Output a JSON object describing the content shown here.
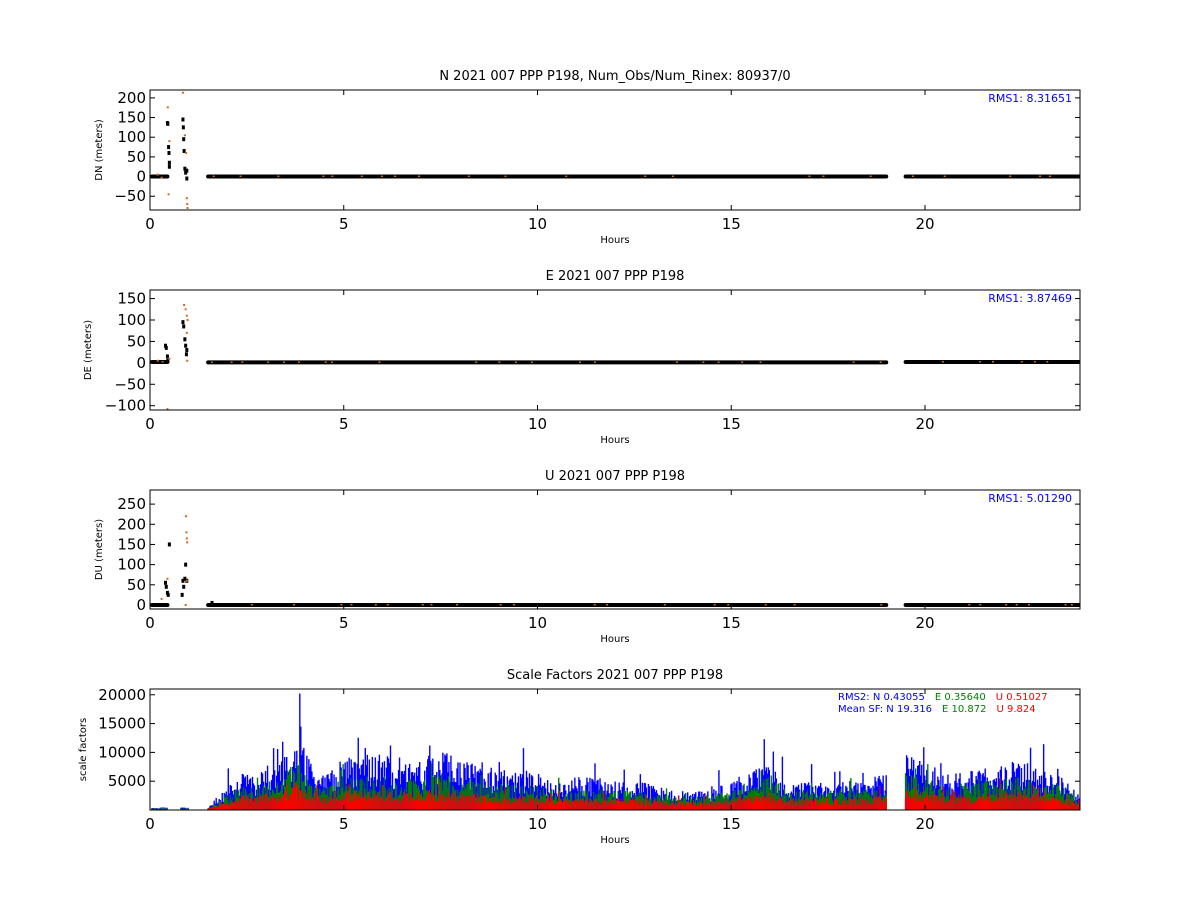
{
  "chart_data": [
    {
      "type": "scatter",
      "title": "N 2021 007 PPP  P198, Num_Obs/Num_Rinex: 80937/0",
      "xlabel": "Hours",
      "ylabel": "DN (meters)",
      "xlim": [
        0,
        24
      ],
      "ylim": [
        -85,
        220
      ],
      "xticks": [
        "0",
        "5",
        "10",
        "15",
        "20"
      ],
      "yticks": [
        "−50",
        "0",
        "50",
        "100",
        "150",
        "200"
      ],
      "annotation": "RMS1:  8.31651",
      "colors": {
        "main": "#000000",
        "outlier": "#d2691e",
        "annotation": "#0000ff"
      },
      "series": [
        {
          "segments": [
            [
              0.05,
              0.45,
              0
            ],
            [
              1.5,
              19.0,
              0
            ],
            [
              19.5,
              24.0,
              0
            ]
          ],
          "points": [
            [
              0.45,
              136
            ],
            [
              0.46,
              134
            ],
            [
              0.48,
              75
            ],
            [
              0.49,
              60
            ],
            [
              0.5,
              35
            ],
            [
              0.5,
              25
            ],
            [
              0.85,
              145
            ],
            [
              0.86,
              125
            ],
            [
              0.87,
              95
            ],
            [
              0.88,
              65
            ],
            [
              0.9,
              20
            ],
            [
              0.92,
              10
            ],
            [
              0.95,
              15
            ],
            [
              0.95,
              -5
            ]
          ]
        },
        {
          "points": [
            [
              0.46,
              176
            ],
            [
              0.5,
              90
            ],
            [
              0.48,
              -45
            ],
            [
              0.85,
              213
            ],
            [
              0.9,
              105
            ],
            [
              0.93,
              60
            ],
            [
              0.95,
              -55
            ],
            [
              0.96,
              -70
            ],
            [
              0.97,
              -80
            ],
            [
              0.2,
              5
            ],
            [
              0.3,
              -3
            ]
          ]
        }
      ]
    },
    {
      "type": "scatter",
      "title": "E 2021 007 PPP  P198",
      "xlabel": "Hours",
      "ylabel": "DE (meters)",
      "xlim": [
        0,
        24
      ],
      "ylim": [
        -110,
        170
      ],
      "xticks": [
        "0",
        "5",
        "10",
        "15",
        "20"
      ],
      "yticks": [
        "−100",
        "−50",
        "0",
        "50",
        "100",
        "150"
      ],
      "annotation": "RMS1:  3.87469",
      "colors": {
        "main": "#000000",
        "outlier": "#d2691e",
        "annotation": "#0000ff"
      },
      "series": [
        {
          "segments": [
            [
              0.05,
              0.45,
              2
            ],
            [
              1.5,
              19.0,
              1
            ],
            [
              19.5,
              24.0,
              2
            ]
          ],
          "points": [
            [
              0.4,
              40
            ],
            [
              0.42,
              35
            ],
            [
              0.45,
              15
            ],
            [
              0.46,
              5
            ],
            [
              0.85,
              95
            ],
            [
              0.87,
              85
            ],
            [
              0.9,
              55
            ],
            [
              0.92,
              40
            ],
            [
              0.95,
              30
            ],
            [
              0.94,
              20
            ]
          ]
        },
        {
          "points": [
            [
              0.88,
              135
            ],
            [
              0.92,
              125
            ],
            [
              0.95,
              110
            ],
            [
              0.97,
              100
            ],
            [
              0.95,
              70
            ],
            [
              0.96,
              5
            ],
            [
              0.45,
              -108
            ],
            [
              0.5,
              10
            ],
            [
              0.2,
              5
            ]
          ]
        }
      ]
    },
    {
      "type": "scatter",
      "title": "U 2021 007 PPP  P198",
      "xlabel": "Hours",
      "ylabel": "DU (meters)",
      "xlim": [
        0,
        24
      ],
      "ylim": [
        -10,
        285
      ],
      "xticks": [
        "0",
        "5",
        "10",
        "15",
        "20"
      ],
      "yticks": [
        "0",
        "50",
        "100",
        "150",
        "200",
        "250"
      ],
      "annotation": "RMS1:  5.01290",
      "colors": {
        "main": "#000000",
        "outlier": "#d2691e",
        "annotation": "#0000ff"
      },
      "series": [
        {
          "segments": [
            [
              0.05,
              0.45,
              0
            ],
            [
              1.5,
              19.0,
              0
            ],
            [
              19.5,
              24.0,
              0
            ]
          ],
          "points": [
            [
              0.4,
              55
            ],
            [
              0.42,
              45
            ],
            [
              0.45,
              30
            ],
            [
              0.47,
              25
            ],
            [
              0.5,
              150
            ],
            [
              0.85,
              60
            ],
            [
              0.87,
              45
            ],
            [
              0.9,
              65
            ],
            [
              0.92,
              100
            ],
            [
              0.95,
              60
            ],
            [
              0.83,
              25
            ],
            [
              1.6,
              5
            ]
          ]
        },
        {
          "points": [
            [
              0.93,
              220
            ],
            [
              0.94,
              180
            ],
            [
              0.95,
              165
            ],
            [
              0.96,
              155
            ],
            [
              0.95,
              60
            ],
            [
              0.92,
              0
            ],
            [
              0.3,
              15
            ],
            [
              0.45,
              65
            ]
          ]
        }
      ]
    },
    {
      "type": "bar",
      "title": "Scale Factors 2021 007 PPP  P198",
      "xlabel": "Hours",
      "ylabel": "scale factors",
      "xlim": [
        0,
        24
      ],
      "ylim": [
        0,
        21000
      ],
      "xticks": [
        "0",
        "5",
        "10",
        "15",
        "20"
      ],
      "yticks": [
        "5000",
        "10000",
        "15000",
        "20000"
      ],
      "legend_lines": [
        [
          {
            "text": "RMS2: N  0.43055",
            "color": "#0000ff"
          },
          {
            "text": "E  0.35640",
            "color": "#008000"
          },
          {
            "text": "U  0.51027",
            "color": "#ff0000"
          }
        ],
        [
          {
            "text": "Mean SF: N  19.316",
            "color": "#0000ff"
          },
          {
            "text": "E  10.872",
            "color": "#008000"
          },
          {
            "text": "U   9.824",
            "color": "#ff0000"
          }
        ]
      ],
      "colors": {
        "N": "#0000ff",
        "E": "#008000",
        "U": "#ff0000"
      },
      "segments": [
        [
          0.05,
          0.45
        ],
        [
          0.8,
          1.0
        ],
        [
          1.5,
          19.0
        ],
        [
          19.5,
          24.0
        ]
      ],
      "series": [
        {
          "name": "N",
          "x": [
            0,
            0.5,
            1,
            1.5,
            2,
            2.25,
            2.5,
            2.75,
            3,
            3.25,
            3.5,
            3.75,
            4,
            4.25,
            4.5,
            5,
            5.5,
            6,
            6.5,
            7,
            7.5,
            8,
            8.5,
            9,
            9.5,
            10,
            10.5,
            11,
            11.5,
            12,
            12.5,
            13,
            13.5,
            14,
            14.5,
            15,
            15.5,
            16,
            16.5,
            17,
            17.5,
            18,
            18.5,
            19,
            19.5,
            20,
            20.5,
            21,
            21.5,
            22,
            22.5,
            23,
            23.5,
            24
          ],
          "values": [
            300,
            300,
            300,
            400,
            3000,
            4000,
            5000,
            3500,
            6000,
            5500,
            7000,
            9000,
            7500,
            5000,
            4000,
            6500,
            7000,
            7000,
            5500,
            6000,
            8000,
            6000,
            5500,
            5000,
            4500,
            4500,
            3000,
            4000,
            4000,
            3500,
            3500,
            3000,
            2500,
            2300,
            2500,
            3500,
            5000,
            5500,
            3000,
            3500,
            3500,
            3500,
            3500,
            4500,
            7500,
            6000,
            4500,
            4500,
            5000,
            5500,
            6000,
            5000,
            4000,
            2000
          ]
        },
        {
          "name": "E",
          "x": [
            0,
            0.5,
            1,
            1.5,
            2,
            2.25,
            2.5,
            2.75,
            3,
            3.25,
            3.5,
            3.75,
            4,
            4.25,
            4.5,
            5,
            5.5,
            6,
            6.5,
            7,
            7.5,
            8,
            8.5,
            9,
            9.5,
            10,
            10.5,
            11,
            11.5,
            12,
            12.5,
            13,
            13.5,
            14,
            14.5,
            15,
            15.5,
            16,
            16.5,
            17,
            17.5,
            18,
            18.5,
            19,
            19.5,
            20,
            20.5,
            21,
            21.5,
            22,
            22.5,
            23,
            23.5,
            24
          ],
          "values": [
            200,
            200,
            200,
            300,
            1800,
            2500,
            3000,
            2500,
            3500,
            3500,
            4500,
            6000,
            4500,
            3500,
            3000,
            3800,
            4000,
            4000,
            3500,
            3800,
            4500,
            3500,
            3500,
            3200,
            3000,
            3000,
            2200,
            2500,
            2500,
            2300,
            2300,
            2000,
            1800,
            1800,
            1800,
            2500,
            3500,
            4000,
            2200,
            2500,
            2500,
            2500,
            2500,
            3000,
            4500,
            4000,
            3000,
            3200,
            3500,
            3800,
            4000,
            3500,
            3000,
            1500
          ]
        },
        {
          "name": "U",
          "x": [
            0,
            0.5,
            1,
            1.5,
            2,
            2.25,
            2.5,
            2.75,
            3,
            3.25,
            3.5,
            3.75,
            4,
            4.25,
            4.5,
            5,
            5.5,
            6,
            6.5,
            7,
            7.5,
            8,
            8.5,
            9,
            9.5,
            10,
            10.5,
            11,
            11.5,
            12,
            12.5,
            13,
            13.5,
            14,
            14.5,
            15,
            15.5,
            16,
            16.5,
            17,
            17.5,
            18,
            18.5,
            19,
            19.5,
            20,
            20.5,
            21,
            21.5,
            22,
            22.5,
            23,
            23.5,
            24
          ],
          "values": [
            100,
            100,
            100,
            200,
            1000,
            1500,
            2000,
            1500,
            2000,
            2000,
            2500,
            3500,
            2500,
            2000,
            1800,
            2200,
            2300,
            2300,
            2000,
            2200,
            2500,
            2000,
            2000,
            1800,
            1700,
            1700,
            1300,
            1500,
            1500,
            1400,
            1400,
            1200,
            1100,
            1100,
            1100,
            1500,
            2000,
            2200,
            1300,
            1500,
            1500,
            1500,
            1500,
            1800,
            2500,
            2200,
            1800,
            1900,
            2000,
            2200,
            2300,
            2000,
            1800,
            900
          ]
        }
      ]
    }
  ]
}
